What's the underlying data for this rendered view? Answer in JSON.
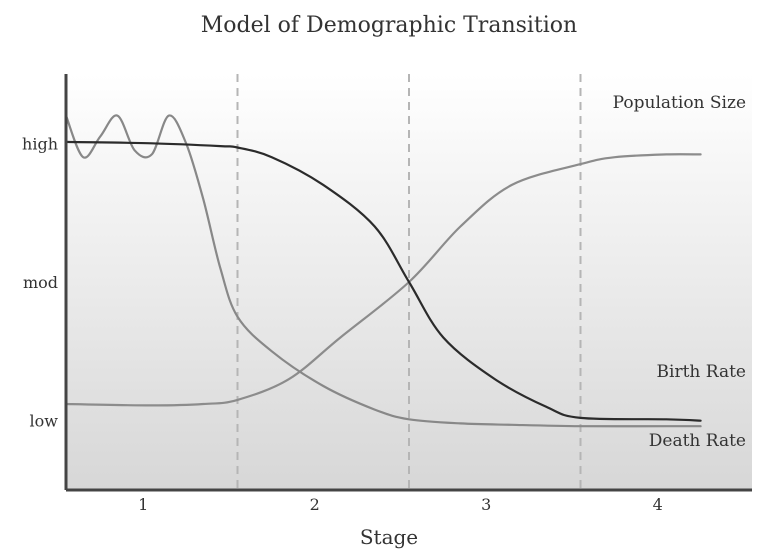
{
  "chart_data": {
    "type": "line",
    "title": "Model of Demographic Transition",
    "xlabel": "Stage",
    "ylabel": "",
    "x_categories": [
      "1",
      "2",
      "3",
      "4"
    ],
    "y_ticks": [
      {
        "label": "low",
        "value": 1
      },
      {
        "label": "mod",
        "value": 2
      },
      {
        "label": "high",
        "value": 3
      }
    ],
    "xlim": [
      0,
      4
    ],
    "ylim": [
      0.5,
      3.5
    ],
    "grid": false,
    "stage_dividers": [
      1,
      2,
      3
    ],
    "colors": {
      "background_top": "#ffffff",
      "background_bottom": "#d7d7d7",
      "axis": "#444444",
      "divider": "#b5b5b5",
      "birth_rate": "#2b2b2b",
      "death_rate": "#888888",
      "population": "#8c8c8c"
    },
    "series": [
      {
        "name": "Birth Rate",
        "x": [
          0,
          0.5,
          0.9,
          1.0,
          1.2,
          1.5,
          1.8,
          2.0,
          2.2,
          2.5,
          2.8,
          3.0,
          3.5,
          3.7
        ],
        "y": [
          3.01,
          3.0,
          2.98,
          2.97,
          2.9,
          2.7,
          2.4,
          2.0,
          1.6,
          1.3,
          1.1,
          1.02,
          1.01,
          1.0
        ]
      },
      {
        "name": "Death Rate",
        "x": [
          0,
          0.1,
          0.2,
          0.3,
          0.4,
          0.5,
          0.6,
          0.7,
          0.8,
          0.9,
          1.0,
          1.2,
          1.5,
          1.8,
          2.0,
          2.3,
          2.6,
          3.0,
          3.5,
          3.7
        ],
        "y": [
          3.2,
          2.9,
          3.05,
          3.2,
          2.95,
          2.92,
          3.2,
          3.0,
          2.6,
          2.1,
          1.75,
          1.5,
          1.25,
          1.08,
          1.01,
          0.98,
          0.97,
          0.96,
          0.96,
          0.96
        ]
      },
      {
        "name": "Population Size",
        "x": [
          0,
          0.5,
          0.8,
          1.0,
          1.3,
          1.6,
          2.0,
          2.3,
          2.6,
          3.0,
          3.2,
          3.5,
          3.7
        ],
        "y": [
          1.12,
          1.11,
          1.12,
          1.15,
          1.3,
          1.6,
          2.0,
          2.4,
          2.7,
          2.85,
          2.9,
          2.92,
          2.92
        ]
      }
    ]
  }
}
